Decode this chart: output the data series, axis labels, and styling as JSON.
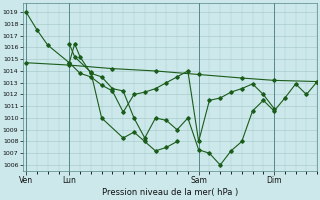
{
  "xlabel": "Pression niveau de la mer( hPa )",
  "bg_color": "#cce8eb",
  "grid_color": "#aacccc",
  "line_color": "#1a5c1a",
  "ylim": [
    1005.5,
    1019.8
  ],
  "yticks": [
    1006,
    1007,
    1008,
    1009,
    1010,
    1011,
    1012,
    1013,
    1014,
    1015,
    1016,
    1017,
    1018,
    1019
  ],
  "day_labels": [
    "Ven",
    "Lun",
    "Sam",
    "Dim"
  ],
  "day_positions": [
    0,
    24,
    96,
    138
  ],
  "xlim": [
    -2,
    162
  ],
  "series": [
    {
      "x": [
        0,
        6,
        12,
        24,
        27,
        30,
        36,
        42,
        48,
        54,
        60,
        66,
        72,
        78,
        84,
        90,
        96,
        102,
        108,
        114,
        120,
        126,
        132,
        138,
        144,
        150,
        156,
        162
      ],
      "y": [
        1019.0,
        1017.5,
        1016.2,
        1014.7,
        1016.3,
        1015.2,
        1013.8,
        1013.5,
        1012.5,
        1012.3,
        1010.0,
        1008.3,
        1010.0,
        1009.8,
        1009.0,
        1010.0,
        1007.3,
        1007.0,
        1006.0,
        1007.2,
        1008.0,
        1010.6,
        1011.5,
        1010.6,
        1011.7,
        1012.9,
        1012.0,
        1013.1
      ]
    },
    {
      "x": [
        0,
        24,
        48,
        72,
        96,
        120,
        138,
        162
      ],
      "y": [
        1014.7,
        1014.5,
        1014.2,
        1014.0,
        1013.7,
        1013.4,
        1013.2,
        1013.1
      ]
    },
    {
      "x": [
        24,
        30,
        36,
        42,
        48,
        54,
        60,
        66,
        72,
        78,
        84,
        90,
        96,
        102,
        108,
        114,
        120,
        126,
        132,
        138
      ],
      "y": [
        1014.7,
        1013.8,
        1013.5,
        1012.8,
        1012.3,
        1010.5,
        1012.0,
        1012.2,
        1012.5,
        1013.0,
        1013.5,
        1014.0,
        1008.0,
        1011.5,
        1011.7,
        1012.2,
        1012.5,
        1012.9,
        1012.0,
        1010.8
      ]
    },
    {
      "x": [
        24,
        27,
        36,
        42,
        54,
        60,
        66,
        72,
        78,
        84
      ],
      "y": [
        1016.3,
        1015.2,
        1013.9,
        1010.0,
        1008.3,
        1008.8,
        1008.0,
        1007.2,
        1007.5,
        1008.0
      ]
    }
  ]
}
